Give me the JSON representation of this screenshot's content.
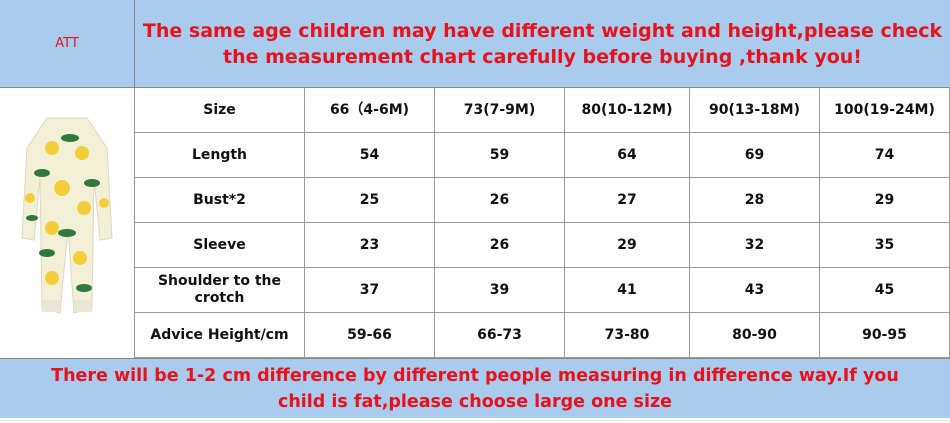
{
  "header": {
    "label": "ATT",
    "notice_lines": [
      "The same age children may have different weight and height,please check",
      "the measurement chart carefully before buying ,thank you!"
    ]
  },
  "table": {
    "rows": [
      [
        "Size",
        "66（4-6M)",
        "73(7-9M)",
        "80(10-12M)",
        "90(13-18M)",
        "100(19-24M)"
      ],
      [
        "Length",
        54,
        59,
        64,
        69,
        74
      ],
      [
        "Bust*2",
        25,
        26,
        27,
        28,
        29
      ],
      [
        "Sleeve",
        23,
        26,
        29,
        32,
        35
      ],
      [
        "Shoulder to the crotch",
        37,
        39,
        41,
        43,
        45
      ],
      [
        "Advice Height/cm",
        "59-66",
        "66-73",
        "73-80",
        "80-90",
        "90-95"
      ]
    ]
  },
  "footer": {
    "notice_lines": [
      "There will be 1-2 cm difference by different people measuring in difference way.If you",
      "child is fat,please choose large one size"
    ]
  }
}
